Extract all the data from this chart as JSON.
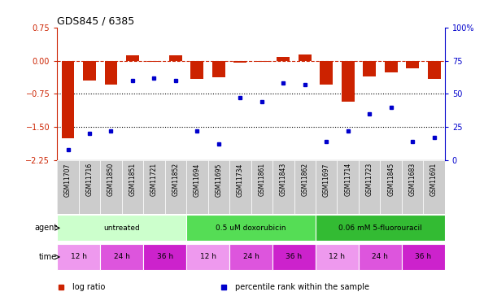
{
  "title": "GDS845 / 6385",
  "samples": [
    "GSM11707",
    "GSM11716",
    "GSM11850",
    "GSM11851",
    "GSM11721",
    "GSM11852",
    "GSM11694",
    "GSM11695",
    "GSM11734",
    "GSM11861",
    "GSM11843",
    "GSM11862",
    "GSM11697",
    "GSM11714",
    "GSM11723",
    "GSM11845",
    "GSM11683",
    "GSM11691"
  ],
  "log_ratio": [
    -1.75,
    -0.45,
    -0.55,
    0.12,
    -0.02,
    0.12,
    -0.42,
    -0.38,
    -0.05,
    -0.02,
    0.08,
    0.13,
    -0.55,
    -0.92,
    -0.35,
    -0.27,
    -0.18,
    -0.42
  ],
  "percentile_rank": [
    8,
    20,
    22,
    60,
    62,
    60,
    22,
    12,
    47,
    44,
    58,
    57,
    14,
    22,
    35,
    40,
    14,
    17
  ],
  "ylim_left": [
    -2.25,
    0.75
  ],
  "ylim_right": [
    0,
    100
  ],
  "yticks_left": [
    -2.25,
    -1.5,
    -0.75,
    0,
    0.75
  ],
  "yticks_right": [
    0,
    25,
    50,
    75,
    100
  ],
  "hline_values": [
    -0.75,
    -1.5
  ],
  "dashed_hline": 0,
  "bar_color": "#cc2200",
  "dot_color": "#0000cc",
  "agent_groups": [
    {
      "label": "untreated",
      "start": 0,
      "end": 6,
      "color": "#ccffcc"
    },
    {
      "label": "0.5 uM doxorubicin",
      "start": 6,
      "end": 12,
      "color": "#55dd55"
    },
    {
      "label": "0.06 mM 5-fluorouracil",
      "start": 12,
      "end": 18,
      "color": "#33bb33"
    }
  ],
  "time_groups": [
    {
      "label": "12 h",
      "start": 0,
      "end": 2,
      "color": "#ee99ee"
    },
    {
      "label": "24 h",
      "start": 2,
      "end": 4,
      "color": "#dd55dd"
    },
    {
      "label": "36 h",
      "start": 4,
      "end": 6,
      "color": "#cc22cc"
    },
    {
      "label": "12 h",
      "start": 6,
      "end": 8,
      "color": "#ee99ee"
    },
    {
      "label": "24 h",
      "start": 8,
      "end": 10,
      "color": "#dd55dd"
    },
    {
      "label": "36 h",
      "start": 10,
      "end": 12,
      "color": "#cc22cc"
    },
    {
      "label": "12 h",
      "start": 12,
      "end": 14,
      "color": "#ee99ee"
    },
    {
      "label": "24 h",
      "start": 14,
      "end": 16,
      "color": "#dd55dd"
    },
    {
      "label": "36 h",
      "start": 16,
      "end": 18,
      "color": "#cc22cc"
    }
  ],
  "legend_items": [
    {
      "label": "log ratio",
      "color": "#cc2200"
    },
    {
      "label": "percentile rank within the sample",
      "color": "#0000cc"
    }
  ],
  "bg_color": "#ffffff",
  "tick_label_color_left": "#cc2200",
  "tick_label_color_right": "#0000cc",
  "agent_label": "agent",
  "time_label": "time",
  "sample_bg": "#cccccc",
  "n_samples": 18
}
